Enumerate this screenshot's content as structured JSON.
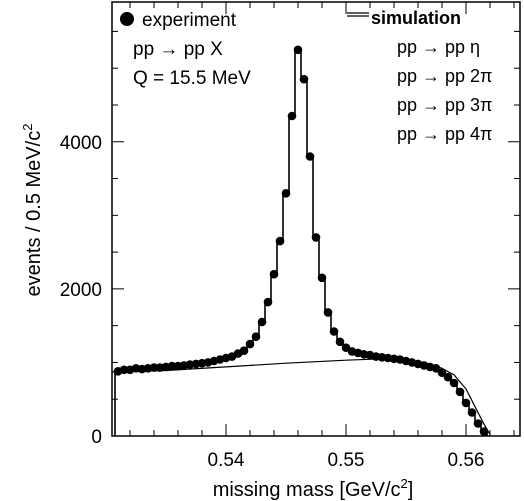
{
  "chart_data": {
    "type": "line",
    "xlabel_prefix": "missing mass  [",
    "xlabel_unit": "GeV/c",
    "xlabel_sup": "2",
    "xlabel_suffix": "]",
    "ylabel_text": "events / 0.5 MeV/c",
    "ylabel_sup": "2",
    "xlim": [
      0.5305,
      0.5645
    ],
    "ylim": [
      0,
      5900
    ],
    "xticks": [
      {
        "value": 0.54,
        "label": "0.54"
      },
      {
        "value": 0.55,
        "label": "0.55"
      },
      {
        "value": 0.56,
        "label": "0.56"
      }
    ],
    "yticks": [
      {
        "value": 0,
        "label": "0"
      },
      {
        "value": 2000,
        "label": "2000"
      },
      {
        "value": 4000,
        "label": "4000"
      }
    ],
    "legend": {
      "experiment_label": "experiment",
      "reaction_label": "pp → pp X",
      "q_label": "Q = 15.5 MeV",
      "simulation_label": "simulation",
      "channels": [
        "pp → pp η",
        "pp → pp 2π",
        "pp → pp 3π",
        "pp → pp 4π"
      ]
    },
    "series": [
      {
        "kind": "experiment",
        "x": [
          0.531,
          0.5315,
          0.532,
          0.5325,
          0.533,
          0.5335,
          0.534,
          0.5345,
          0.535,
          0.5355,
          0.536,
          0.5365,
          0.537,
          0.5375,
          0.538,
          0.5385,
          0.539,
          0.5395,
          0.54,
          0.5405,
          0.541,
          0.5415,
          0.542,
          0.5425,
          0.543,
          0.5435,
          0.544,
          0.5445,
          0.545,
          0.5455,
          0.546,
          0.5465,
          0.547,
          0.5475,
          0.548,
          0.5485,
          0.549,
          0.5495,
          0.55,
          0.5505,
          0.551,
          0.5515,
          0.552,
          0.5525,
          0.553,
          0.5535,
          0.554,
          0.5545,
          0.555,
          0.5555,
          0.556,
          0.5565,
          0.557,
          0.5575,
          0.558,
          0.5585,
          0.559,
          0.5595,
          0.56,
          0.5605,
          0.561,
          0.5615
        ],
        "y": [
          880,
          900,
          900,
          920,
          910,
          920,
          930,
          930,
          940,
          950,
          950,
          960,
          970,
          980,
          990,
          1000,
          1020,
          1040,
          1060,
          1080,
          1120,
          1160,
          1250,
          1350,
          1550,
          1820,
          2200,
          2650,
          3300,
          4350,
          5250,
          4850,
          3800,
          2700,
          2150,
          1680,
          1420,
          1280,
          1200,
          1150,
          1130,
          1110,
          1100,
          1080,
          1070,
          1060,
          1050,
          1040,
          1020,
          1000,
          980,
          960,
          940,
          920,
          860,
          800,
          720,
          600,
          450,
          320,
          170,
          60
        ]
      },
      {
        "kind": "background",
        "x": [
          0.5305,
          0.535,
          0.54,
          0.545,
          0.55,
          0.553,
          0.555,
          0.557,
          0.558,
          0.559,
          0.56,
          0.5605,
          0.561,
          0.5615,
          0.562
        ],
        "y": [
          870,
          890,
          940,
          990,
          1030,
          1050,
          1040,
          980,
          920,
          830,
          640,
          480,
          320,
          160,
          20
        ]
      }
    ]
  }
}
